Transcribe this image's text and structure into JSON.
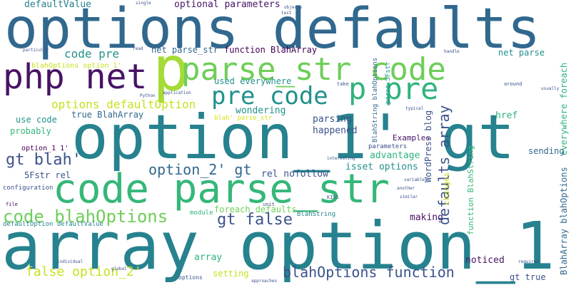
{
  "palette": {
    "purple": "#471365",
    "darkpurple": "#440154",
    "blue": "#3b528b",
    "slate": "#31688e",
    "teal": "#26828e",
    "teal2": "#21918c",
    "green": "#35b779",
    "green2": "#2fb47c",
    "lime": "#6ece58",
    "lime2": "#a5db36",
    "yellow": "#c8e020",
    "yellow2": "#d5e21a"
  },
  "words": {
    "options_defaults": "options defaults",
    "option_1_gt": "option_1' gt",
    "array_option_1": "array option_1'",
    "code_parse_str": "code parse_str",
    "php_net": "php net",
    "p_big": "p",
    "p_vertical": "p",
    "parse_str_code": "parse_str code",
    "pre_code": "pre code",
    "p_pre": "p pre",
    "code_blahOptions": "code blahOptions",
    "gt_false": "gt false",
    "gt_blah": "gt blah'",
    "option_2_gt": "option_2' gt",
    "blahOptions_function": "blahOptions function",
    "false_option_2": "false option_2'",
    "options_defaultOption": "options defaultOption",
    "code_pre": "code pre",
    "optional_parameters": "optional parameters",
    "defaultValue": "defaultValue",
    "net_parse_str": "net parse_str",
    "function_BlahArray": "function BlahArray",
    "blahOptions_option_1": "blahOptions option_1'",
    "used_everywhere": "used everywhere",
    "true_BlahArray": "true BlahArray",
    "use_code": "use code",
    "probably": "probably",
    "wondering": "wondering",
    "parsing": "parsing",
    "happened": "happened",
    "option_1_1": "option_1 1'",
    "Examples": "Examples",
    "parameters": "parameters",
    "advantage": "advantage",
    "isset_options": "isset options",
    "rel_nofollow": "rel nofollow",
    "5Fstr_rel": "5Fstr rel",
    "configuration": "configuration",
    "foreach_defaults": "foreach defaults",
    "making": "making",
    "noticed": "noticed",
    "array": "array",
    "setting": "setting",
    "defaultOption_defaultValue": "defaultOption defaultValue",
    "module": "module",
    "net_parse": "net parse",
    "href": "href",
    "sending": "sending",
    "gt_true": "gt true",
    "defaults_array": "defaults array",
    "WordPress_blog": "WordPress blog",
    "BlahString_blahOptions": "BlahString blahOptions",
    "parse_5Fstr": "parse 5Fstr",
    "changes": "changes",
    "function_BlahString": "function BlahString",
    "BlahArray_blahOptions": "BlahArray blahOptions",
    "everywhere_foreach": "everywhere foreach",
    "blah_parse_str": "blah' parse_str",
    "BlahString": "BlahString",
    "options_small": "options",
    "probably_small": "probably",
    "use_small": "use",
    "file": "file",
    "unit": "unit",
    "take": "take",
    "around": "around",
    "typical": "typical",
    "interesting": "interesting",
    "KISS": "KISS",
    "objects": "objects",
    "test": "test",
    "read": "read",
    "application": "application",
    "single": "single",
    "individual": "individual",
    "global": "global",
    "approaches": "approaches",
    "required": "required",
    "handle": "handle",
    "usually": "usually",
    "particular": "particular",
    "Python": "Python",
    "another": "another",
    "similar": "similar",
    "variables": "variables"
  }
}
